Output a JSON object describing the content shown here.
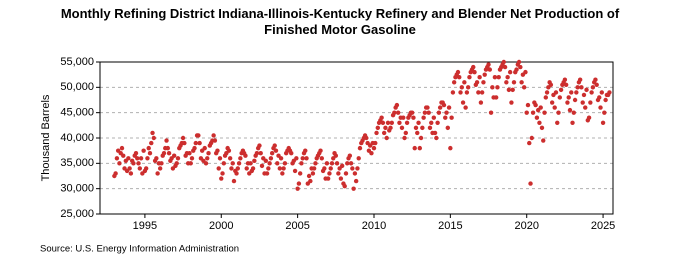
{
  "chart_data": {
    "type": "scatter",
    "title": "Monthly Refining District Indiana-Illinois-Kentucky Refinery and Blender Net Production of Finished Motor Gasoline",
    "y_label": "Thousand Barrels",
    "source": "Source: U.S. Energy Information Administration",
    "xlim": [
      1992.06,
      2025.65
    ],
    "xticks": [
      1995,
      2000,
      2005,
      2010,
      2015,
      2020,
      2025
    ],
    "ylim": [
      25000,
      55000
    ],
    "yticks": [
      {
        "value": 25000,
        "label": "25,000"
      },
      {
        "value": 30000,
        "label": "30,000"
      },
      {
        "value": 35000,
        "label": "35,000"
      },
      {
        "value": 40000,
        "label": "40,000"
      },
      {
        "value": 45000,
        "label": "45,000"
      },
      {
        "value": 50000,
        "label": "50,000"
      },
      {
        "value": 55000,
        "label": "55,000"
      }
    ],
    "grid": true,
    "color": "#cc2e2e",
    "x": [
      1993,
      1993.083,
      1993.167,
      1993.25,
      1993.333,
      1993.417,
      1993.5,
      1993.583,
      1993.667,
      1993.75,
      1993.833,
      1993.917,
      1994,
      1994.083,
      1994.167,
      1994.25,
      1994.333,
      1994.417,
      1994.5,
      1994.583,
      1994.667,
      1994.75,
      1994.833,
      1994.917,
      1995,
      1995.083,
      1995.167,
      1995.25,
      1995.333,
      1995.417,
      1995.5,
      1995.583,
      1995.667,
      1995.75,
      1995.833,
      1995.917,
      1996,
      1996.083,
      1996.167,
      1996.25,
      1996.333,
      1996.417,
      1996.5,
      1996.583,
      1996.667,
      1996.75,
      1996.833,
      1996.917,
      1997,
      1997.083,
      1997.167,
      1997.25,
      1997.333,
      1997.417,
      1997.5,
      1997.583,
      1997.667,
      1997.75,
      1997.833,
      1997.917,
      1998,
      1998.083,
      1998.167,
      1998.25,
      1998.333,
      1998.417,
      1998.5,
      1998.583,
      1998.667,
      1998.75,
      1998.833,
      1998.917,
      1999,
      1999.083,
      1999.167,
      1999.25,
      1999.333,
      1999.417,
      1999.5,
      1999.583,
      1999.667,
      1999.75,
      1999.833,
      1999.917,
      2000,
      2000.083,
      2000.167,
      2000.25,
      2000.333,
      2000.417,
      2000.5,
      2000.583,
      2000.667,
      2000.75,
      2000.833,
      2000.917,
      2001,
      2001.083,
      2001.167,
      2001.25,
      2001.333,
      2001.417,
      2001.5,
      2001.583,
      2001.667,
      2001.75,
      2001.833,
      2001.917,
      2002,
      2002.083,
      2002.167,
      2002.25,
      2002.333,
      2002.417,
      2002.5,
      2002.583,
      2002.667,
      2002.75,
      2002.833,
      2002.917,
      2003,
      2003.083,
      2003.167,
      2003.25,
      2003.333,
      2003.417,
      2003.5,
      2003.583,
      2003.667,
      2003.75,
      2003.833,
      2003.917,
      2004,
      2004.083,
      2004.167,
      2004.25,
      2004.333,
      2004.417,
      2004.5,
      2004.583,
      2004.667,
      2004.75,
      2004.833,
      2004.917,
      2005,
      2005.083,
      2005.167,
      2005.25,
      2005.333,
      2005.417,
      2005.5,
      2005.583,
      2005.667,
      2005.75,
      2005.833,
      2005.917,
      2006,
      2006.083,
      2006.167,
      2006.25,
      2006.333,
      2006.417,
      2006.5,
      2006.583,
      2006.667,
      2006.75,
      2006.833,
      2006.917,
      2007,
      2007.083,
      2007.167,
      2007.25,
      2007.333,
      2007.417,
      2007.5,
      2007.583,
      2007.667,
      2007.75,
      2007.833,
      2007.917,
      2008,
      2008.083,
      2008.167,
      2008.25,
      2008.333,
      2008.417,
      2008.5,
      2008.583,
      2008.667,
      2008.75,
      2008.833,
      2008.917,
      2009,
      2009.083,
      2009.167,
      2009.25,
      2009.333,
      2009.417,
      2009.5,
      2009.583,
      2009.667,
      2009.75,
      2009.833,
      2009.917,
      2010,
      2010.083,
      2010.167,
      2010.25,
      2010.333,
      2010.417,
      2010.5,
      2010.583,
      2010.667,
      2010.75,
      2010.833,
      2010.917,
      2011,
      2011.083,
      2011.167,
      2011.25,
      2011.333,
      2011.417,
      2011.5,
      2011.583,
      2011.667,
      2011.75,
      2011.833,
      2011.917,
      2012,
      2012.083,
      2012.167,
      2012.25,
      2012.333,
      2012.417,
      2012.5,
      2012.583,
      2012.667,
      2012.75,
      2012.833,
      2012.917,
      2013,
      2013.083,
      2013.167,
      2013.25,
      2013.333,
      2013.417,
      2013.5,
      2013.583,
      2013.667,
      2013.75,
      2013.833,
      2013.917,
      2014,
      2014.083,
      2014.167,
      2014.25,
      2014.333,
      2014.417,
      2014.5,
      2014.583,
      2014.667,
      2014.75,
      2014.833,
      2014.917,
      2015,
      2015.083,
      2015.167,
      2015.25,
      2015.333,
      2015.417,
      2015.5,
      2015.583,
      2015.667,
      2015.75,
      2015.833,
      2015.917,
      2016,
      2016.083,
      2016.167,
      2016.25,
      2016.333,
      2016.417,
      2016.5,
      2016.583,
      2016.667,
      2016.75,
      2016.833,
      2016.917,
      2017,
      2017.083,
      2017.167,
      2017.25,
      2017.333,
      2017.417,
      2017.5,
      2017.583,
      2017.667,
      2017.75,
      2017.833,
      2017.917,
      2018,
      2018.083,
      2018.167,
      2018.25,
      2018.333,
      2018.417,
      2018.5,
      2018.583,
      2018.667,
      2018.75,
      2018.833,
      2018.917,
      2019,
      2019.083,
      2019.167,
      2019.25,
      2019.333,
      2019.417,
      2019.5,
      2019.583,
      2019.667,
      2019.75,
      2019.833,
      2019.917,
      2020,
      2020.083,
      2020.167,
      2020.25,
      2020.333,
      2020.417,
      2020.5,
      2020.583,
      2020.667,
      2020.75,
      2020.833,
      2020.917,
      2021,
      2021.083,
      2021.167,
      2021.25,
      2021.333,
      2021.417,
      2021.5,
      2021.583,
      2021.667,
      2021.75,
      2021.833,
      2021.917,
      2022,
      2022.083,
      2022.167,
      2022.25,
      2022.333,
      2022.417,
      2022.5,
      2022.583,
      2022.667,
      2022.75,
      2022.833,
      2022.917,
      2023,
      2023.083,
      2023.167,
      2023.25,
      2023.333,
      2023.417,
      2023.5,
      2023.583,
      2023.667,
      2023.75,
      2023.833,
      2023.917,
      2024,
      2024.083,
      2024.167,
      2024.25,
      2024.333,
      2024.417,
      2024.5,
      2024.583,
      2024.667,
      2024.75,
      2024.833,
      2024.917,
      2025,
      2025.083,
      2025.167,
      2025.25,
      2025.333,
      2025.417
    ],
    "values": [
      32500,
      33000,
      36000,
      37500,
      35000,
      37000,
      38000,
      36500,
      34000,
      35500,
      33500,
      36000,
      34000,
      33000,
      35500,
      35000,
      36500,
      37000,
      36000,
      35000,
      34000,
      36000,
      33000,
      37500,
      33500,
      34000,
      36000,
      38000,
      37000,
      39000,
      41000,
      40000,
      35500,
      36000,
      33000,
      35000,
      34000,
      35000,
      36500,
      37000,
      38000,
      39500,
      38000,
      37000,
      35500,
      36000,
      34000,
      36500,
      34500,
      35000,
      36000,
      38000,
      38500,
      39000,
      40000,
      39000,
      36500,
      37000,
      35000,
      37000,
      35000,
      36000,
      37500,
      38000,
      39000,
      40500,
      40500,
      39000,
      36000,
      37500,
      35500,
      38000,
      35000,
      36000,
      37000,
      38500,
      39000,
      39500,
      40500,
      39500,
      37000,
      37500,
      34000,
      36000,
      32000,
      33000,
      35000,
      36500,
      37000,
      38000,
      37500,
      36000,
      34000,
      35000,
      31500,
      33500,
      33000,
      34000,
      35000,
      36000,
      37000,
      37500,
      37000,
      36500,
      34000,
      35000,
      33000,
      35000,
      33500,
      34000,
      35500,
      36500,
      37000,
      38000,
      38500,
      37000,
      34500,
      36000,
      33000,
      35500,
      33000,
      34000,
      35000,
      36000,
      37000,
      38000,
      38500,
      37500,
      35000,
      36500,
      34000,
      36000,
      33000,
      34000,
      35000,
      37000,
      37500,
      38000,
      37500,
      37000,
      35000,
      35500,
      33500,
      36000,
      30000,
      31000,
      33000,
      35000,
      36000,
      37000,
      37500,
      36000,
      31000,
      32500,
      31500,
      34000,
      33000,
      34000,
      35000,
      36000,
      36500,
      37000,
      37500,
      36000,
      33500,
      34000,
      32000,
      35000,
      32000,
      33000,
      34000,
      35000,
      36000,
      37000,
      36500,
      35000,
      33000,
      34000,
      32000,
      34500,
      31000,
      30500,
      33000,
      35000,
      36000,
      36500,
      35000,
      34000,
      30000,
      33000,
      31500,
      34000,
      36000,
      38000,
      39000,
      39500,
      40000,
      40500,
      40000,
      39000,
      37500,
      38500,
      37000,
      39000,
      38000,
      39000,
      41000,
      42000,
      43000,
      43500,
      44000,
      43000,
      41000,
      42000,
      40000,
      43000,
      41500,
      42000,
      43000,
      44500,
      45000,
      46000,
      46500,
      45000,
      43000,
      44000,
      42000,
      44000,
      40000,
      41000,
      43000,
      44000,
      44500,
      45000,
      45000,
      44000,
      38000,
      42000,
      41000,
      43000,
      38000,
      40000,
      42000,
      44000,
      45000,
      46000,
      46000,
      45000,
      42000,
      43000,
      41000,
      44000,
      41000,
      40000,
      43000,
      45000,
      46000,
      47000,
      47000,
      46500,
      44000,
      45000,
      42000,
      46000,
      38000,
      44000,
      49000,
      51000,
      52000,
      52500,
      53000,
      52000,
      49000,
      50000,
      47000,
      51000,
      46000,
      49000,
      50000,
      52000,
      53000,
      53500,
      54000,
      53000,
      50500,
      51000,
      49000,
      52000,
      47000,
      49000,
      51000,
      52500,
      53500,
      54000,
      54500,
      53500,
      45000,
      50000,
      48000,
      52000,
      48000,
      50000,
      52000,
      53500,
      54000,
      54500,
      55000,
      54000,
      51000,
      52000,
      49500,
      53000,
      47000,
      49500,
      51000,
      53000,
      53500,
      54500,
      55000,
      54000,
      51000,
      52500,
      50000,
      53000,
      45000,
      46500,
      39000,
      31000,
      40000,
      45000,
      47000,
      46500,
      44000,
      45500,
      43000,
      46000,
      42000,
      39500,
      45000,
      48000,
      49000,
      50000,
      51000,
      50500,
      47000,
      48500,
      46000,
      49000,
      43000,
      45000,
      48000,
      49500,
      50500,
      51000,
      51500,
      50500,
      47000,
      48000,
      45500,
      49000,
      43000,
      45000,
      47500,
      49000,
      50000,
      51000,
      51500,
      50000,
      47000,
      48500,
      46000,
      49500,
      43500,
      44000,
      47000,
      49000,
      50000,
      51000,
      51500,
      50500,
      47500,
      48000,
      46000,
      49000,
      43000,
      45000,
      47500,
      48500,
      48500,
      49000
    ]
  }
}
